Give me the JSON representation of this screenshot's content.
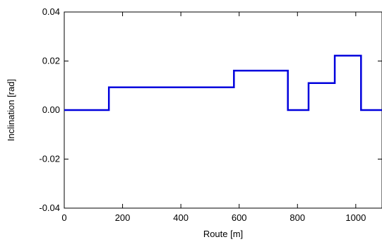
{
  "chart_data": {
    "type": "line",
    "xlabel": "Route [m]",
    "ylabel": "Inclination [rad]",
    "xlim": [
      0,
      1090
    ],
    "ylim": [
      -0.04,
      0.04
    ],
    "grid": false,
    "x_ticks": [
      0,
      200,
      400,
      600,
      800,
      1000
    ],
    "x_tick_labels": [
      "0",
      "200",
      "400",
      "600",
      "800",
      "1000"
    ],
    "y_ticks": [
      0.04,
      0.02,
      0.0,
      -0.02,
      -0.04
    ],
    "y_tick_labels": [
      "0.04",
      "0.02",
      "0.00",
      "-0.02",
      "-0.04"
    ],
    "series": [
      {
        "color": "#0000dd",
        "step": true,
        "x": [
          0,
          153,
          153,
          582,
          582,
          767,
          767,
          838,
          838,
          928,
          928,
          1018,
          1018,
          1090
        ],
        "y": [
          0.0,
          0.0,
          0.0093,
          0.0093,
          0.0161,
          0.0161,
          0.0,
          0.0,
          0.011,
          0.011,
          0.0222,
          0.0222,
          0.0,
          0.0
        ]
      }
    ]
  }
}
